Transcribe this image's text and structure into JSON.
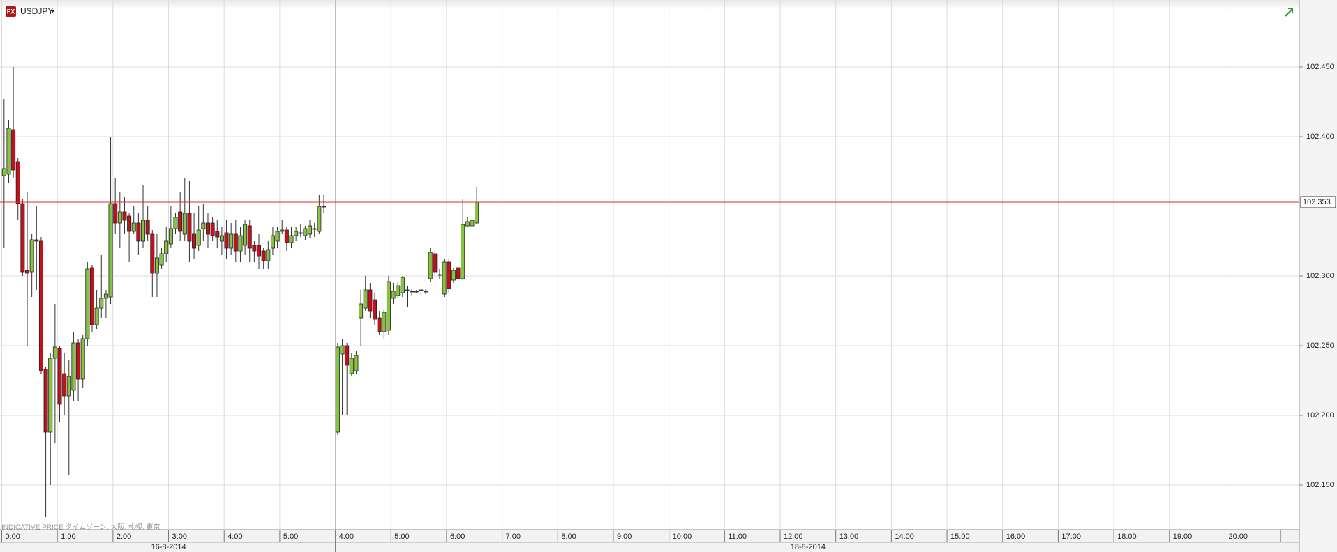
{
  "header": {
    "badge": "FX",
    "symbol": "USDJPY"
  },
  "footer_note": "INDICATIVE PRICE  タイムゾーン: 大阪, 札幌, 東京",
  "chart_data": {
    "type": "candlestick",
    "open": [
      102.372,
      102.373,
      102.405,
      102.382,
      102.352,
      102.304,
      102.303,
      102.326,
      102.325,
      102.233,
      102.188,
      102.241,
      102.248,
      102.23,
      102.214,
      102.218,
      102.252,
      102.226,
      102.255,
      102.306,
      102.265,
      102.277,
      102.284,
      102.285,
      102.352,
      102.338,
      102.346,
      102.343,
      102.332,
      102.338,
      102.325,
      102.34,
      102.33,
      102.302,
      102.308,
      102.316,
      102.323,
      102.334,
      102.346,
      102.33,
      102.345,
      102.33,
      102.322,
      102.334,
      102.338,
      102.338,
      102.332,
      102.325,
      102.331,
      102.32,
      102.33,
      102.318,
      102.322,
      102.336,
      102.322,
      102.322,
      102.318,
      102.311,
      102.32,
      102.325,
      102.332,
      102.333,
      102.324,
      102.329,
      102.331,
      102.329,
      102.33,
      102.334,
      102.332,
      102.35,
      null,
      null,
      102.188,
      102.244,
      102.25,
      102.23,
      102.232,
      102.27,
      102.277,
      102.29,
      102.283,
      102.27,
      102.26,
      102.261,
      102.284,
      102.286,
      102.288,
      102.29,
      102.289,
      102.289,
      102.29,
      102.289,
      102.298,
      102.316,
      102.301,
      102.287,
      102.31,
      102.297,
      102.306,
      102.298,
      102.336,
      102.336,
      102.338
    ],
    "high": [
      102.427,
      102.412,
      102.45,
      102.385,
      102.355,
      102.36,
      102.33,
      102.35,
      102.328,
      102.235,
      102.245,
      102.28,
      102.25,
      102.245,
      102.24,
      102.26,
      102.255,
      102.258,
      102.31,
      102.308,
      102.29,
      102.315,
      102.29,
      102.4,
      102.37,
      102.36,
      102.357,
      102.345,
      102.35,
      102.345,
      102.365,
      102.35,
      102.333,
      102.33,
      102.32,
      102.335,
      102.35,
      102.345,
      102.36,
      102.37,
      102.368,
      102.345,
      102.35,
      102.352,
      102.345,
      102.342,
      102.34,
      102.335,
      102.34,
      102.338,
      102.34,
      102.335,
      102.34,
      102.34,
      102.325,
      102.33,
      102.32,
      102.325,
      102.335,
      102.335,
      102.34,
      102.335,
      102.335,
      102.335,
      102.337,
      102.336,
      102.34,
      102.338,
      102.358,
      102.358,
      null,
      null,
      102.252,
      102.255,
      102.252,
      102.245,
      102.246,
      102.29,
      102.3,
      102.295,
      102.288,
      102.275,
      102.276,
      102.3,
      102.295,
      102.296,
      102.3,
      102.293,
      102.291,
      102.29,
      102.292,
      102.291,
      102.32,
      102.318,
      102.305,
      102.312,
      102.312,
      102.306,
      102.31,
      102.355,
      102.342,
      102.342,
      102.364
    ],
    "low": [
      102.32,
      102.367,
      102.37,
      102.34,
      102.3,
      102.25,
      102.285,
      102.29,
      102.23,
      102.127,
      102.15,
      102.18,
      102.195,
      102.2,
      102.157,
      102.21,
      102.21,
      102.22,
      102.25,
      102.26,
      102.262,
      102.27,
      102.27,
      102.28,
      102.33,
      102.32,
      102.33,
      102.31,
      102.33,
      102.315,
      102.32,
      102.325,
      102.285,
      102.285,
      102.305,
      102.31,
      102.32,
      102.33,
      102.325,
      102.325,
      102.31,
      102.312,
      102.318,
      102.325,
      102.32,
      102.325,
      102.32,
      102.315,
      102.312,
      102.315,
      102.31,
      102.31,
      102.315,
      102.31,
      102.31,
      102.305,
      102.305,
      102.305,
      102.315,
      102.32,
      102.33,
      102.318,
      102.32,
      102.325,
      102.328,
      102.326,
      102.327,
      102.328,
      102.33,
      102.345,
      null,
      null,
      102.186,
      102.2,
      102.2,
      102.228,
      102.23,
      102.25,
      102.275,
      102.27,
      102.265,
      102.258,
      102.255,
      102.258,
      102.28,
      102.284,
      102.285,
      102.278,
      102.286,
      102.288,
      102.287,
      102.287,
      102.296,
      102.3,
      102.298,
      102.285,
      102.288,
      102.295,
      102.296,
      102.297,
      102.335,
      102.334,
      102.337
    ],
    "close": [
      102.377,
      102.406,
      102.376,
      102.352,
      102.303,
      102.302,
      102.326,
      102.325,
      102.232,
      102.188,
      102.241,
      102.249,
      102.208,
      102.214,
      102.228,
      102.252,
      102.226,
      102.255,
      102.305,
      102.265,
      102.277,
      102.284,
      102.287,
      102.352,
      102.338,
      102.346,
      102.34,
      102.332,
      102.338,
      102.325,
      102.34,
      102.33,
      102.302,
      102.313,
      102.316,
      102.325,
      102.334,
      102.342,
      102.332,
      102.345,
      102.325,
      102.32,
      102.333,
      102.338,
      102.33,
      102.329,
      102.328,
      102.329,
      102.32,
      102.33,
      102.318,
      102.329,
      102.337,
      102.32,
      102.318,
      102.314,
      102.311,
      102.319,
      102.329,
      102.332,
      102.333,
      102.324,
      102.329,
      102.332,
      102.331,
      102.334,
      102.336,
      102.334,
      102.35,
      102.35,
      null,
      null,
      102.249,
      102.25,
      102.236,
      102.241,
      102.243,
      102.28,
      102.29,
      102.275,
      102.269,
      102.26,
      102.274,
      102.296,
      102.289,
      102.293,
      102.299,
      102.29,
      102.289,
      102.289,
      102.29,
      102.289,
      102.317,
      102.303,
      102.301,
      102.31,
      102.291,
      102.304,
      102.298,
      102.337,
      102.339,
      102.34,
      102.353
    ],
    "up_color": "#86c440",
    "down_color": "#c4101c",
    "ylim": [
      102.118,
      102.498
    ],
    "yticks": [
      {
        "value": 102.15,
        "label": "102.150"
      },
      {
        "value": 102.2,
        "label": "102.200"
      },
      {
        "value": 102.25,
        "label": "102.250"
      },
      {
        "value": 102.3,
        "label": "102.300"
      },
      {
        "value": 102.4,
        "label": "102.400"
      },
      {
        "value": 102.45,
        "label": "102.450"
      }
    ],
    "xticks": [
      "0:00",
      "1:00",
      "2:00",
      "3:00",
      "4:00",
      "5:00",
      "4:00",
      "5:00",
      "6:00",
      "7:00",
      "8:00",
      "9:00",
      "10:00",
      "11:00",
      "12:00",
      "13:00",
      "14:00",
      "15:00",
      "16:00",
      "17:00",
      "18:00",
      "19:00",
      "20:00"
    ],
    "dates": [
      "16-8-2014",
      "18-8-2014"
    ],
    "current_price": 102.353,
    "current_price_color": "#e02828",
    "grid": true
  }
}
